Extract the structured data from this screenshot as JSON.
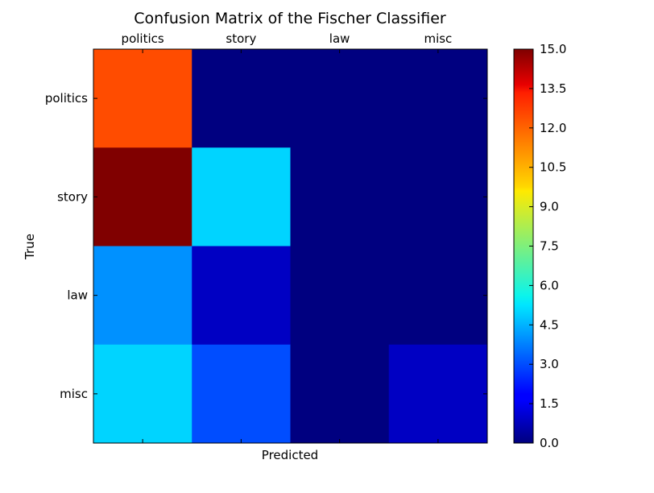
{
  "chart_data": {
    "type": "heatmap",
    "title": "Confusion Matrix of the Fischer Classifier",
    "xlabel": "Predicted",
    "ylabel": "True",
    "x_categories": [
      "politics",
      "story",
      "law",
      "misc"
    ],
    "y_categories": [
      "politics",
      "story",
      "law",
      "misc"
    ],
    "values": [
      [
        12,
        0,
        0,
        0
      ],
      [
        15,
        5,
        0,
        0
      ],
      [
        4,
        1,
        0,
        0
      ],
      [
        5,
        3,
        0,
        1
      ]
    ],
    "colormap": "jet",
    "colorbar": {
      "range": [
        0.0,
        15.0
      ],
      "ticks": [
        "0.0",
        "1.5",
        "3.0",
        "4.5",
        "6.0",
        "7.5",
        "9.0",
        "10.5",
        "12.0",
        "13.5",
        "15.0"
      ]
    },
    "x_tick_position": "top"
  }
}
